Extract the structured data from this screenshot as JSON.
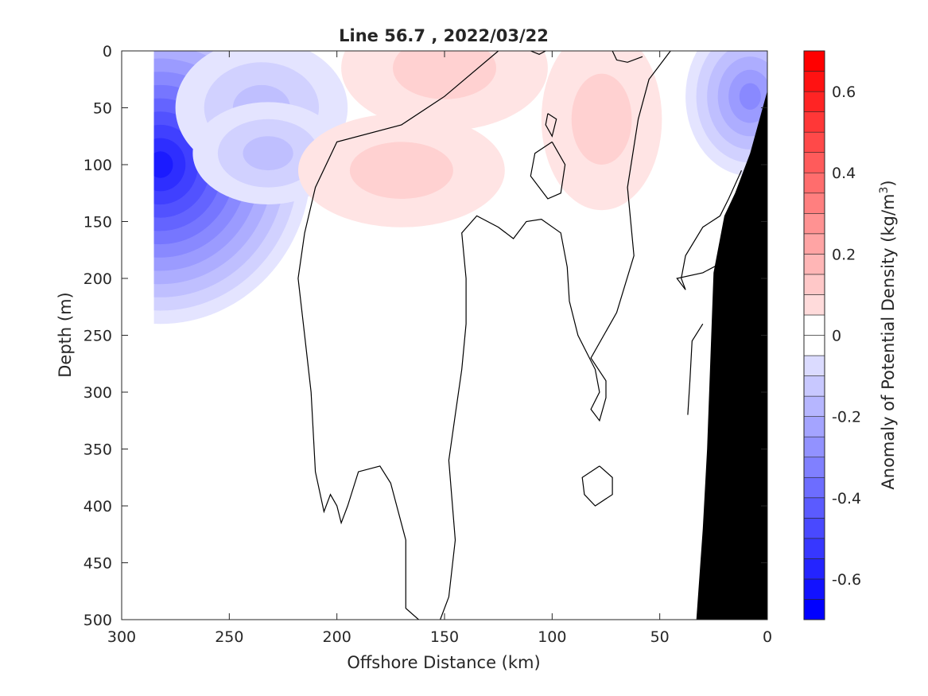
{
  "chart_data": {
    "type": "heatmap",
    "title": "Line 56.7 , 2022/03/22",
    "xlabel": "Offshore Distance (km)",
    "ylabel": "Depth (m)",
    "colorbar_label_prefix": "Anomaly of Potential Density (kg/m",
    "colorbar_label_exp": "3",
    "colorbar_label_suffix": ")",
    "xlim": [
      300,
      0
    ],
    "ylim": [
      500,
      0
    ],
    "x_reversed": true,
    "y_reversed": true,
    "clim": [
      -0.7,
      0.7
    ],
    "contour_step": 0.05,
    "x_ticks": [
      300,
      250,
      200,
      150,
      100,
      50,
      0
    ],
    "y_ticks": [
      0,
      50,
      100,
      150,
      200,
      250,
      300,
      350,
      400,
      450,
      500
    ],
    "colorbar_ticks": [
      "0.6",
      "0.4",
      "0.2",
      "0",
      "-0.2",
      "-0.4",
      "-0.6"
    ],
    "colorbar_tick_values": [
      0.6,
      0.4,
      0.2,
      0,
      -0.2,
      -0.4,
      -0.6
    ],
    "colormap": {
      "negative": "#0000ff",
      "zero": "#ffffff",
      "positive": "#ff0000"
    },
    "features": [
      {
        "name": "negative-anomaly-core-offshore",
        "x": 282,
        "depth": 60,
        "peak": -0.58
      },
      {
        "name": "negative-anomaly-offshore-secondary",
        "x": 235,
        "depth": 50,
        "peak": -0.15
      },
      {
        "name": "negative-anomaly-offshore-secondary-deep",
        "x": 232,
        "depth": 90,
        "peak": -0.15
      },
      {
        "name": "negative-anomaly-inshore",
        "x": 8,
        "depth": 25,
        "peak": -0.3
      },
      {
        "name": "positive-anomaly-surface",
        "x": 150,
        "depth": 15,
        "peak": 0.12
      },
      {
        "name": "positive-anomaly-subsurface",
        "x": 170,
        "depth": 105,
        "peak": 0.1
      },
      {
        "name": "positive-anomaly-nearshore",
        "x": 77,
        "depth": 60,
        "peak": 0.11
      }
    ],
    "bathymetry": [
      [
        0,
        35
      ],
      [
        8,
        90
      ],
      [
        15,
        125
      ],
      [
        20,
        145
      ],
      [
        25,
        195
      ],
      [
        28,
        350
      ],
      [
        30,
        420
      ],
      [
        33,
        500
      ]
    ],
    "zero_contour_x_extent": [
      210,
      35
    ]
  }
}
